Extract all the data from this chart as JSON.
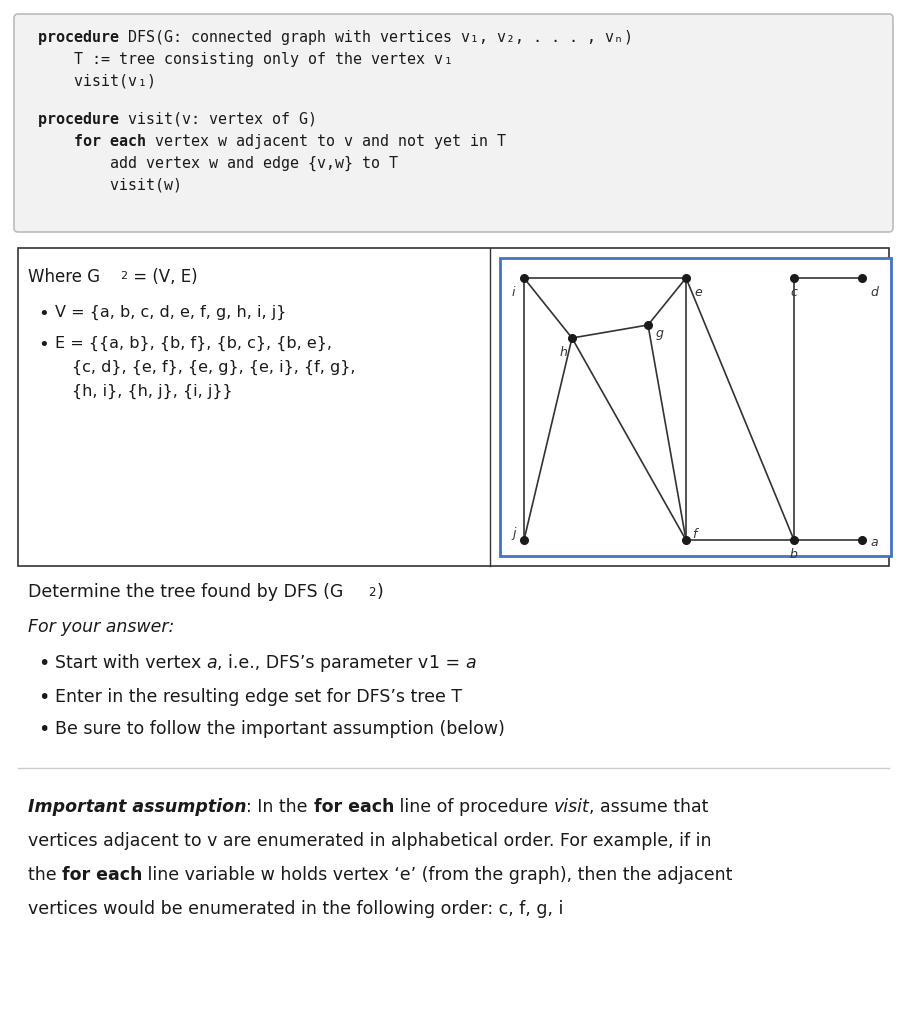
{
  "bg_color": "#ffffff",
  "code_box_bg": "#f2f2f2",
  "code_box_border": "#bbbbbb",
  "graph_border": "#4472c4",
  "graph_edges": [
    [
      "a",
      "b"
    ],
    [
      "b",
      "f"
    ],
    [
      "b",
      "c"
    ],
    [
      "b",
      "e"
    ],
    [
      "c",
      "d"
    ],
    [
      "e",
      "f"
    ],
    [
      "e",
      "g"
    ],
    [
      "e",
      "i"
    ],
    [
      "f",
      "g"
    ],
    [
      "f",
      "h"
    ],
    [
      "g",
      "h"
    ],
    [
      "h",
      "i"
    ],
    [
      "h",
      "j"
    ],
    [
      "i",
      "j"
    ]
  ]
}
